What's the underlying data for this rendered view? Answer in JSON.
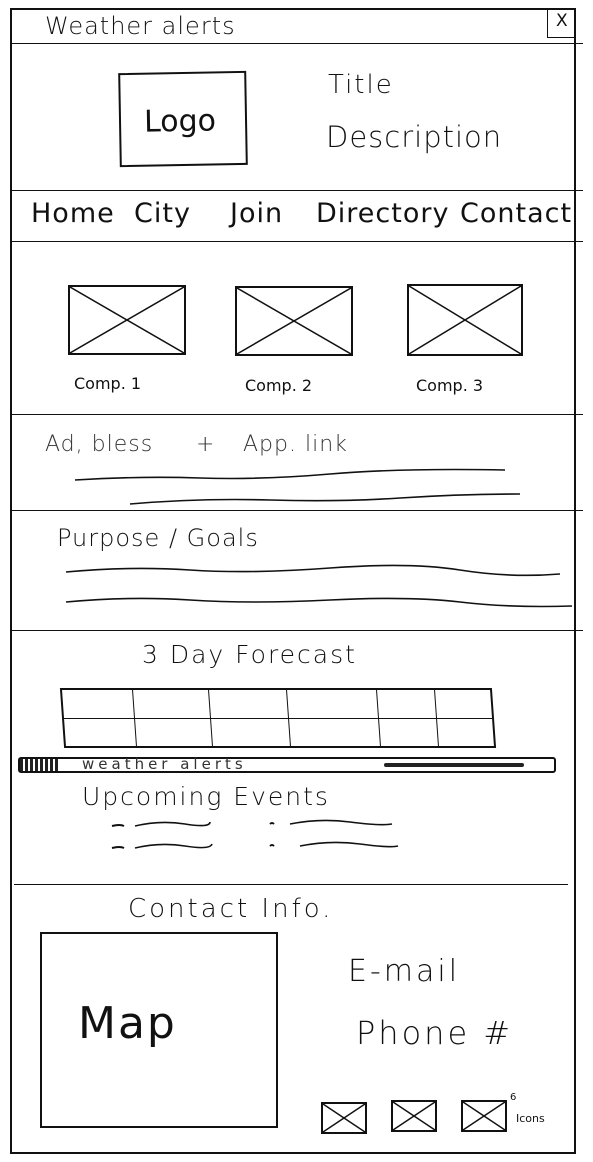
{
  "window": {
    "title": "Weather alerts",
    "close_label": "X"
  },
  "header": {
    "logo_label": "Logo",
    "title": "Title",
    "description": "Description"
  },
  "nav": {
    "items": [
      {
        "label": "Home"
      },
      {
        "label": "City"
      },
      {
        "label": "Join"
      },
      {
        "label": "Directory"
      },
      {
        "label": "Contact"
      }
    ]
  },
  "components": [
    {
      "label": "Comp. 1"
    },
    {
      "label": "Comp. 2"
    },
    {
      "label": "Comp. 3"
    }
  ],
  "ad": {
    "label": "Ad, bless",
    "plus": "+",
    "link_label": "App. link"
  },
  "purpose": {
    "heading": "Purpose / Goals"
  },
  "forecast": {
    "heading": "3 Day Forecast",
    "rows": 2,
    "cols": 6
  },
  "alerts_bar": {
    "label": "weather alerts"
  },
  "events": {
    "heading": "Upcoming Events"
  },
  "contact": {
    "heading": "Contact Info.",
    "map_label": "Map",
    "email_label": "E-mail",
    "phone_label": "Phone #",
    "icons_label": "Icons",
    "icons_count": "6"
  }
}
